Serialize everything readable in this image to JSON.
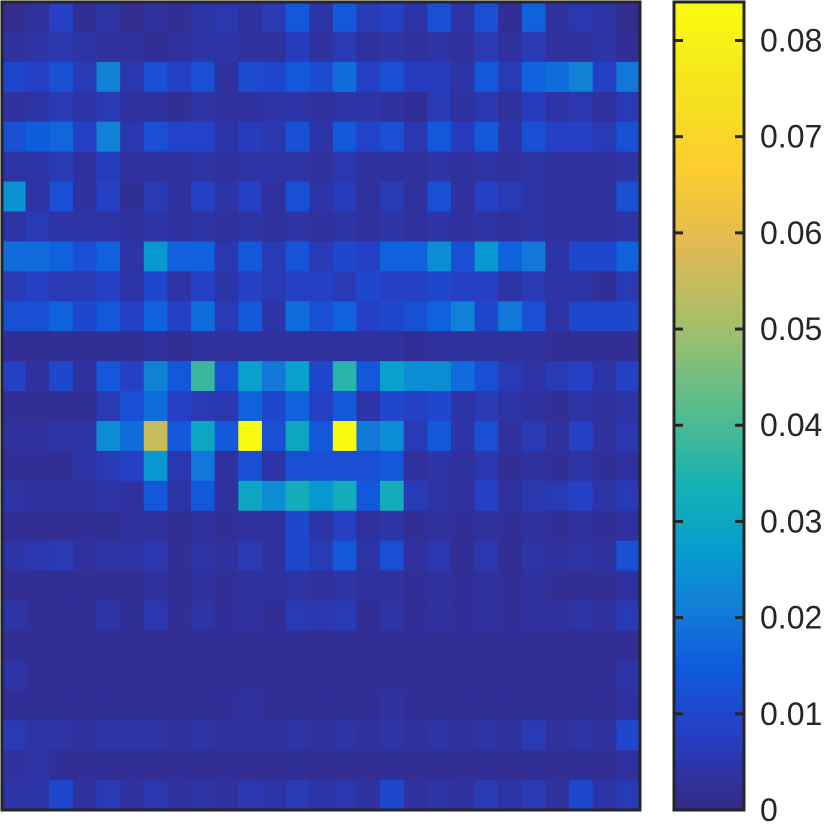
{
  "chart_data": {
    "type": "heatmap",
    "title": "",
    "xlabel": "",
    "ylabel": "",
    "n_rows": 27,
    "n_cols": 27,
    "colormap": "parula",
    "colorbar": {
      "min": 0,
      "max": 0.084,
      "ticks": [
        0,
        0.01,
        0.02,
        0.03,
        0.04,
        0.05,
        0.06,
        0.07,
        0.08
      ],
      "tick_labels": [
        "0",
        "0.01",
        "0.02",
        "0.03",
        "0.04",
        "0.05",
        "0.06",
        "0.07",
        "0.08"
      ],
      "location": "right"
    },
    "axes_ticks_visible": false,
    "frame_color": "#262626",
    "values": [
      [
        0.001,
        0.003,
        0.008,
        0.002,
        0.004,
        0.001,
        0.003,
        0.002,
        0.004,
        0.005,
        0.003,
        0.006,
        0.014,
        0.004,
        0.014,
        0.006,
        0.008,
        0.004,
        0.012,
        0.004,
        0.012,
        0.002,
        0.016,
        0.003,
        0.005,
        0.004,
        0.001
      ],
      [
        0.003,
        0.004,
        0.005,
        0.004,
        0.003,
        0.003,
        0.002,
        0.003,
        0.004,
        0.004,
        0.003,
        0.003,
        0.007,
        0.003,
        0.006,
        0.003,
        0.004,
        0.003,
        0.004,
        0.003,
        0.006,
        0.003,
        0.006,
        0.003,
        0.003,
        0.004,
        0.002
      ],
      [
        0.01,
        0.008,
        0.012,
        0.006,
        0.022,
        0.005,
        0.012,
        0.008,
        0.012,
        0.003,
        0.011,
        0.01,
        0.014,
        0.011,
        0.018,
        0.008,
        0.012,
        0.007,
        0.007,
        0.004,
        0.014,
        0.006,
        0.016,
        0.018,
        0.022,
        0.008,
        0.02
      ],
      [
        0.003,
        0.004,
        0.006,
        0.004,
        0.006,
        0.003,
        0.003,
        0.002,
        0.004,
        0.003,
        0.003,
        0.004,
        0.004,
        0.003,
        0.004,
        0.004,
        0.003,
        0.002,
        0.006,
        0.003,
        0.005,
        0.003,
        0.007,
        0.004,
        0.005,
        0.003,
        0.006
      ],
      [
        0.012,
        0.015,
        0.017,
        0.008,
        0.022,
        0.005,
        0.012,
        0.009,
        0.009,
        0.004,
        0.007,
        0.005,
        0.012,
        0.004,
        0.014,
        0.009,
        0.012,
        0.005,
        0.014,
        0.007,
        0.014,
        0.004,
        0.012,
        0.008,
        0.008,
        0.006,
        0.012
      ],
      [
        0.004,
        0.004,
        0.006,
        0.003,
        0.007,
        0.003,
        0.003,
        0.003,
        0.004,
        0.003,
        0.004,
        0.004,
        0.004,
        0.003,
        0.005,
        0.003,
        0.003,
        0.003,
        0.004,
        0.003,
        0.004,
        0.003,
        0.004,
        0.003,
        0.003,
        0.003,
        0.004
      ],
      [
        0.025,
        0.004,
        0.012,
        0.003,
        0.008,
        0.002,
        0.006,
        0.003,
        0.008,
        0.004,
        0.008,
        0.003,
        0.012,
        0.004,
        0.007,
        0.003,
        0.006,
        0.003,
        0.012,
        0.003,
        0.008,
        0.006,
        0.004,
        0.003,
        0.003,
        0.003,
        0.012
      ],
      [
        0.004,
        0.006,
        0.004,
        0.004,
        0.004,
        0.003,
        0.004,
        0.003,
        0.004,
        0.003,
        0.004,
        0.003,
        0.004,
        0.003,
        0.004,
        0.003,
        0.004,
        0.003,
        0.004,
        0.003,
        0.004,
        0.003,
        0.004,
        0.003,
        0.003,
        0.003,
        0.004
      ],
      [
        0.018,
        0.018,
        0.016,
        0.012,
        0.016,
        0.004,
        0.026,
        0.016,
        0.016,
        0.005,
        0.014,
        0.006,
        0.013,
        0.006,
        0.01,
        0.008,
        0.016,
        0.016,
        0.024,
        0.012,
        0.026,
        0.016,
        0.02,
        0.004,
        0.01,
        0.01,
        0.016
      ],
      [
        0.006,
        0.008,
        0.006,
        0.006,
        0.008,
        0.004,
        0.01,
        0.004,
        0.008,
        0.004,
        0.008,
        0.006,
        0.008,
        0.008,
        0.006,
        0.01,
        0.008,
        0.008,
        0.01,
        0.008,
        0.008,
        0.004,
        0.006,
        0.004,
        0.004,
        0.002,
        0.006
      ],
      [
        0.012,
        0.012,
        0.016,
        0.01,
        0.014,
        0.008,
        0.016,
        0.008,
        0.018,
        0.006,
        0.014,
        0.004,
        0.018,
        0.012,
        0.016,
        0.008,
        0.01,
        0.012,
        0.016,
        0.022,
        0.01,
        0.02,
        0.012,
        0.004,
        0.01,
        0.01,
        0.01
      ],
      [
        0.002,
        0.002,
        0.002,
        0.002,
        0.002,
        0.002,
        0.003,
        0.002,
        0.003,
        0.003,
        0.003,
        0.003,
        0.003,
        0.003,
        0.003,
        0.003,
        0.003,
        0.002,
        0.003,
        0.003,
        0.003,
        0.003,
        0.003,
        0.002,
        0.002,
        0.002,
        0.002
      ],
      [
        0.008,
        0.003,
        0.01,
        0.003,
        0.014,
        0.008,
        0.022,
        0.014,
        0.038,
        0.012,
        0.028,
        0.02,
        0.028,
        0.01,
        0.036,
        0.014,
        0.028,
        0.024,
        0.024,
        0.018,
        0.012,
        0.006,
        0.004,
        0.006,
        0.008,
        0.004,
        0.008
      ],
      [
        0.002,
        0.002,
        0.002,
        0.002,
        0.006,
        0.012,
        0.018,
        0.008,
        0.006,
        0.005,
        0.016,
        0.01,
        0.016,
        0.008,
        0.014,
        0.004,
        0.01,
        0.008,
        0.01,
        0.004,
        0.006,
        0.004,
        0.003,
        0.002,
        0.004,
        0.003,
        0.004
      ],
      [
        0.003,
        0.003,
        0.004,
        0.004,
        0.024,
        0.018,
        0.055,
        0.014,
        0.03,
        0.014,
        0.084,
        0.012,
        0.03,
        0.014,
        0.084,
        0.02,
        0.024,
        0.006,
        0.014,
        0.004,
        0.012,
        0.003,
        0.006,
        0.003,
        0.008,
        0.003,
        0.005
      ],
      [
        0.002,
        0.002,
        0.002,
        0.004,
        0.006,
        0.008,
        0.026,
        0.005,
        0.02,
        0.003,
        0.012,
        0.004,
        0.012,
        0.012,
        0.012,
        0.012,
        0.014,
        0.003,
        0.004,
        0.003,
        0.005,
        0.002,
        0.003,
        0.002,
        0.004,
        0.002,
        0.003
      ],
      [
        0.004,
        0.003,
        0.003,
        0.003,
        0.004,
        0.003,
        0.014,
        0.004,
        0.014,
        0.003,
        0.03,
        0.024,
        0.032,
        0.026,
        0.032,
        0.014,
        0.032,
        0.006,
        0.004,
        0.003,
        0.008,
        0.003,
        0.005,
        0.006,
        0.008,
        0.004,
        0.006
      ],
      [
        0.002,
        0.002,
        0.002,
        0.002,
        0.002,
        0.003,
        0.003,
        0.002,
        0.003,
        0.002,
        0.003,
        0.003,
        0.01,
        0.004,
        0.008,
        0.003,
        0.004,
        0.002,
        0.003,
        0.002,
        0.003,
        0.002,
        0.003,
        0.002,
        0.003,
        0.002,
        0.003
      ],
      [
        0.004,
        0.005,
        0.006,
        0.003,
        0.004,
        0.004,
        0.005,
        0.002,
        0.004,
        0.003,
        0.006,
        0.003,
        0.01,
        0.006,
        0.014,
        0.004,
        0.012,
        0.003,
        0.005,
        0.002,
        0.005,
        0.002,
        0.004,
        0.003,
        0.004,
        0.003,
        0.012
      ],
      [
        0.002,
        0.002,
        0.002,
        0.002,
        0.002,
        0.002,
        0.003,
        0.002,
        0.003,
        0.002,
        0.003,
        0.003,
        0.004,
        0.003,
        0.004,
        0.003,
        0.003,
        0.002,
        0.003,
        0.002,
        0.003,
        0.002,
        0.003,
        0.002,
        0.002,
        0.002,
        0.003
      ],
      [
        0.004,
        0.002,
        0.002,
        0.002,
        0.004,
        0.002,
        0.005,
        0.002,
        0.004,
        0.002,
        0.003,
        0.002,
        0.006,
        0.005,
        0.006,
        0.002,
        0.004,
        0.002,
        0.003,
        0.002,
        0.003,
        0.002,
        0.003,
        0.003,
        0.004,
        0.003,
        0.006
      ],
      [
        0.002,
        0.002,
        0.002,
        0.002,
        0.002,
        0.002,
        0.002,
        0.002,
        0.002,
        0.002,
        0.002,
        0.002,
        0.002,
        0.002,
        0.002,
        0.002,
        0.002,
        0.002,
        0.002,
        0.002,
        0.002,
        0.002,
        0.002,
        0.002,
        0.002,
        0.002,
        0.002
      ],
      [
        0.004,
        0.002,
        0.002,
        0.002,
        0.002,
        0.002,
        0.002,
        0.002,
        0.002,
        0.002,
        0.002,
        0.002,
        0.002,
        0.002,
        0.002,
        0.002,
        0.002,
        0.002,
        0.002,
        0.002,
        0.002,
        0.002,
        0.002,
        0.002,
        0.002,
        0.002,
        0.004
      ],
      [
        0.002,
        0.002,
        0.002,
        0.002,
        0.002,
        0.002,
        0.002,
        0.002,
        0.002,
        0.002,
        0.003,
        0.002,
        0.002,
        0.002,
        0.002,
        0.002,
        0.003,
        0.002,
        0.002,
        0.002,
        0.002,
        0.002,
        0.002,
        0.002,
        0.002,
        0.002,
        0.003
      ],
      [
        0.006,
        0.004,
        0.004,
        0.003,
        0.004,
        0.004,
        0.004,
        0.003,
        0.004,
        0.003,
        0.003,
        0.003,
        0.004,
        0.003,
        0.004,
        0.003,
        0.004,
        0.003,
        0.004,
        0.003,
        0.004,
        0.003,
        0.006,
        0.003,
        0.004,
        0.003,
        0.01
      ],
      [
        0.003,
        0.004,
        0.002,
        0.002,
        0.002,
        0.002,
        0.002,
        0.002,
        0.002,
        0.002,
        0.002,
        0.002,
        0.002,
        0.002,
        0.002,
        0.002,
        0.002,
        0.002,
        0.002,
        0.002,
        0.002,
        0.002,
        0.002,
        0.002,
        0.002,
        0.002,
        0.003
      ],
      [
        0.004,
        0.004,
        0.01,
        0.003,
        0.006,
        0.003,
        0.005,
        0.003,
        0.004,
        0.003,
        0.005,
        0.004,
        0.006,
        0.004,
        0.005,
        0.003,
        0.01,
        0.003,
        0.004,
        0.003,
        0.006,
        0.004,
        0.006,
        0.003,
        0.01,
        0.004,
        0.006
      ]
    ]
  }
}
